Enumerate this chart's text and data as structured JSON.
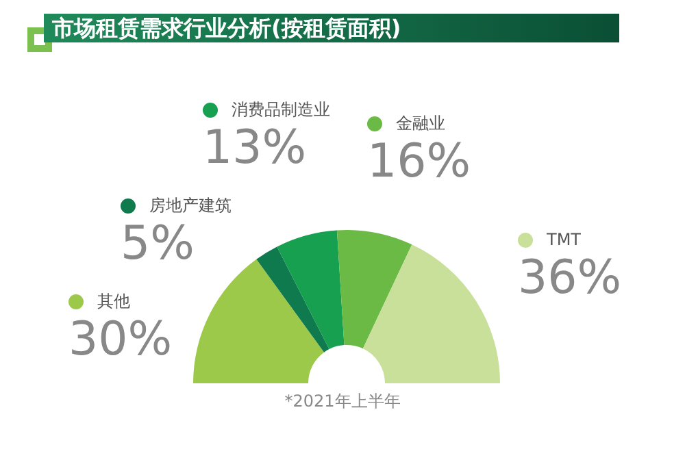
{
  "chart_data": {
    "type": "donut",
    "title": "市场租赁需求行业分析(按租赁面积)",
    "categories": [
      "其他",
      "房地产建筑",
      "消费品制造业",
      "金融业",
      "TMT"
    ],
    "values": [
      30,
      5,
      13,
      16,
      36
    ],
    "value_labels": [
      "30%",
      "5%",
      "13%",
      "16%",
      "36%"
    ],
    "colors": [
      "#9dc94a",
      "#0e7a4e",
      "#16a04f",
      "#6bba45",
      "#c8e09a"
    ],
    "legend": "top",
    "annotations": [
      "*2021年上半年"
    ]
  }
}
